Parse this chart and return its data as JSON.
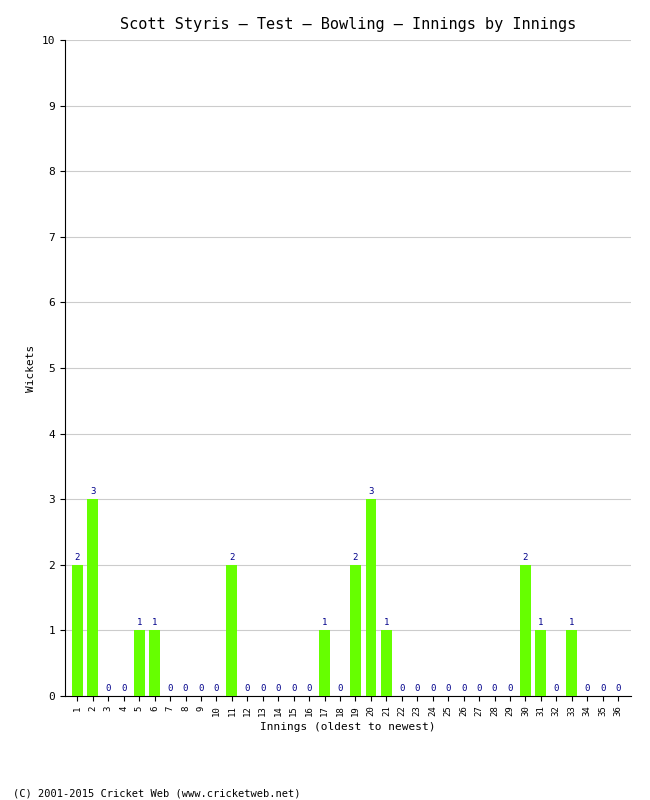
{
  "title": "Scott Styris – Test – Bowling – Innings by Innings",
  "xlabel": "Innings (oldest to newest)",
  "ylabel": "Wickets",
  "footer": "(C) 2001-2015 Cricket Web (www.cricketweb.net)",
  "bar_color": "#66FF00",
  "label_color": "#00008B",
  "background_color": "#FFFFFF",
  "grid_color": "#CCCCCC",
  "ylim": [
    0,
    10
  ],
  "yticks": [
    0,
    1,
    2,
    3,
    4,
    5,
    6,
    7,
    8,
    9,
    10
  ],
  "innings": [
    1,
    2,
    3,
    4,
    5,
    6,
    7,
    8,
    9,
    10,
    11,
    12,
    13,
    14,
    15,
    16,
    17,
    18,
    19,
    20,
    21,
    22,
    23,
    24,
    25,
    26,
    27,
    28,
    29,
    30,
    31,
    32,
    33,
    34,
    35,
    36
  ],
  "wickets": [
    2,
    3,
    0,
    0,
    1,
    1,
    0,
    0,
    0,
    0,
    2,
    0,
    0,
    0,
    0,
    0,
    1,
    0,
    2,
    3,
    1,
    0,
    0,
    0,
    0,
    0,
    0,
    0,
    0,
    2,
    1,
    0,
    1,
    0,
    0,
    0
  ]
}
